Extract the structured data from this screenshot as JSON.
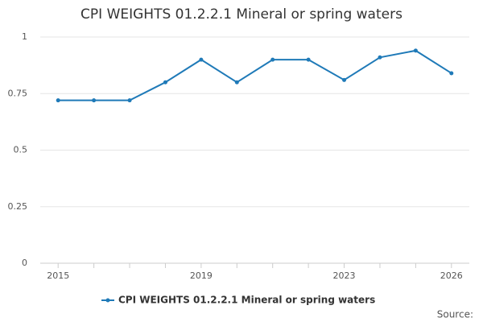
{
  "chart_data": {
    "type": "line",
    "title": "CPI WEIGHTS 01.2.2.1 Mineral or spring waters",
    "x": [
      2015,
      2016,
      2017,
      2018,
      2019,
      2020,
      2021,
      2022,
      2023,
      2024,
      2025,
      2026
    ],
    "series": [
      {
        "name": "CPI WEIGHTS 01.2.2.1 Mineral or spring waters",
        "color": "#1f7ab8",
        "values": [
          0.72,
          0.72,
          0.72,
          0.8,
          0.9,
          0.8,
          0.9,
          0.9,
          0.81,
          0.91,
          0.94,
          0.84
        ]
      }
    ],
    "xlim": [
      2014.5,
      2026.5
    ],
    "xticks": [
      2015,
      2019,
      2023,
      2026
    ],
    "ylim": [
      0,
      1
    ],
    "yticks": [
      0,
      0.25,
      0.5,
      0.75,
      1
    ],
    "grid": true,
    "legend": "bottom",
    "source_label": "Source:"
  }
}
